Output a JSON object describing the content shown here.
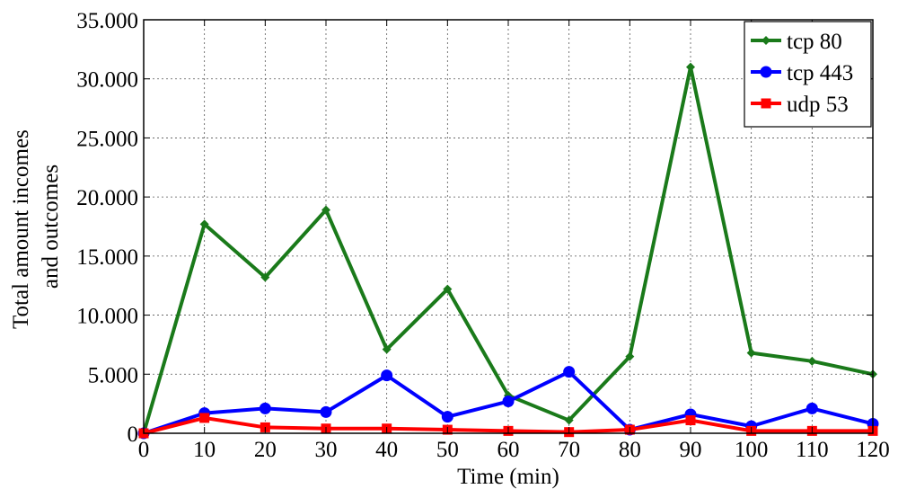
{
  "chart_data": {
    "type": "line",
    "title": "",
    "xlabel": "Time (min)",
    "ylabel": [
      "Total amount incomes",
      "and outcomes"
    ],
    "x": [
      0,
      10,
      20,
      30,
      40,
      50,
      60,
      70,
      80,
      90,
      100,
      110,
      120
    ],
    "x_ticks": [
      "0",
      "10",
      "20",
      "30",
      "40",
      "50",
      "60",
      "70",
      "80",
      "90",
      "100",
      "110",
      "120"
    ],
    "xlim": [
      0,
      120
    ],
    "ylim": [
      0,
      35000
    ],
    "y_ticks": [
      0,
      5000,
      10000,
      15000,
      20000,
      25000,
      30000,
      35000
    ],
    "y_tick_labels": [
      "0",
      "5.000",
      "10.000",
      "15.000",
      "20.000",
      "25.000",
      "30.000",
      "35.000"
    ],
    "grid": true,
    "legend_position": "top-right",
    "series": [
      {
        "name": "tcp 80",
        "color": "#1a7a1a",
        "marker": "diamond",
        "values": [
          0,
          17700,
          13200,
          18900,
          7100,
          12200,
          3200,
          1100,
          6500,
          31000,
          6800,
          6100,
          5000
        ]
      },
      {
        "name": "tcp 443",
        "color": "#0000ff",
        "marker": "circle",
        "values": [
          0,
          1700,
          2100,
          1800,
          4900,
          1400,
          2700,
          5200,
          300,
          1600,
          600,
          2100,
          800
        ]
      },
      {
        "name": "udp 53",
        "color": "#ff0000",
        "marker": "square",
        "values": [
          0,
          1300,
          500,
          400,
          400,
          300,
          200,
          100,
          300,
          1100,
          200,
          200,
          200
        ]
      }
    ]
  }
}
